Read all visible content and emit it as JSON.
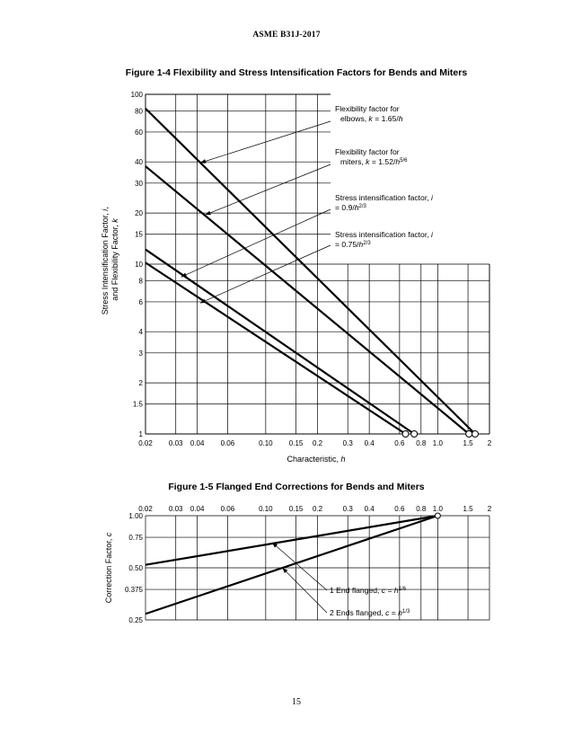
{
  "page": {
    "header": "ASME B31J-2017",
    "page_number": "15"
  },
  "chart_data": [
    {
      "type": "line",
      "title": "Figure 1-4 Flexibility and Stress Intensification Factors for Bends and Miters",
      "xlabel": "Characteristic, h",
      "ylabel": "Stress Intensification Factor, i, and Flexibility Factor, k",
      "xscale": "log",
      "yscale": "log",
      "xlim": [
        0.02,
        2
      ],
      "ylim": [
        1,
        100
      ],
      "grid": true,
      "x_ticks": [
        0.02,
        0.03,
        0.04,
        0.06,
        0.1,
        0.15,
        0.2,
        0.3,
        0.4,
        0.6,
        0.8,
        1.0,
        1.5,
        2
      ],
      "x_tick_labels": [
        "0.02",
        "0.03",
        "0.04",
        "0.06",
        "0.10",
        "0.15",
        "0.2",
        "0.3",
        "0.4",
        "0.6",
        "0.8",
        "1.0",
        "1.5",
        "2"
      ],
      "y_ticks": [
        1,
        1.5,
        2,
        3,
        4,
        6,
        8,
        10,
        15,
        20,
        30,
        40,
        60,
        80,
        100
      ],
      "y_tick_labels": [
        "1",
        "1.5",
        "2",
        "3",
        "4",
        "6",
        "8",
        "10",
        "15",
        "20",
        "30",
        "40",
        "60",
        "80",
        "100"
      ],
      "series": [
        {
          "x": [
            0.02,
            1.65
          ],
          "y": [
            82.5,
            1.0
          ],
          "end_marker": "open-circle"
        },
        {
          "x": [
            0.02,
            1.52
          ],
          "y": [
            37.7,
            1.0
          ],
          "end_marker": "open-circle"
        },
        {
          "x": [
            0.02,
            0.73
          ],
          "y": [
            12.2,
            1.0
          ],
          "end_marker": "open-circle"
        },
        {
          "x": [
            0.02,
            0.65
          ],
          "y": [
            10.2,
            1.0
          ],
          "end_marker": "open-circle"
        }
      ],
      "annotations": [
        {
          "lines": [
            "Flexibility factor for",
            "elbows, k = 1.65/h"
          ],
          "points_to": [
            0.0417,
            39.5
          ]
        },
        {
          "lines": [
            "Flexibility factor for",
            "miters, k = 1.52/h5/6"
          ],
          "points_to": [
            0.0445,
            19.5
          ]
        },
        {
          "lines": [
            "Stress intensification factor, i",
            "= 0.9/h2/3"
          ],
          "points_to": [
            0.0322,
            8.4
          ]
        },
        {
          "lines": [
            "Stress intensification factor, i",
            "= 0.75/h2/3"
          ],
          "points_to": [
            0.0416,
            5.9
          ]
        }
      ]
    },
    {
      "type": "line",
      "title": "Figure 1-5 Flanged End Corrections for Bends and Miters",
      "xlabel": "",
      "ylabel": "Correction Factor, c",
      "xscale": "log",
      "yscale": "log",
      "xlim": [
        0.02,
        2
      ],
      "ylim": [
        0.25,
        1.0
      ],
      "grid": true,
      "x_ticks": [
        0.02,
        0.03,
        0.04,
        0.06,
        0.1,
        0.15,
        0.2,
        0.3,
        0.4,
        0.6,
        0.8,
        1.0,
        1.5,
        2
      ],
      "x_tick_labels": [
        "0.02",
        "0.03",
        "0.04",
        "0.06",
        "0.10",
        "0.15",
        "0.2",
        "0.3",
        "0.4",
        "0.6",
        "0.8",
        "1.0",
        "1.5",
        "2"
      ],
      "y_ticks": [
        1.0,
        0.75,
        0.5,
        0.375,
        0.25
      ],
      "y_tick_labels": [
        "1.00",
        "0.75",
        "0.50",
        "0.375",
        "0.25"
      ],
      "series": [
        {
          "x": [
            0.02,
            1.0
          ],
          "y": [
            0.52,
            1.0
          ],
          "end_marker": "open-circle"
        },
        {
          "x": [
            0.02,
            1.0
          ],
          "y": [
            0.271,
            1.0
          ],
          "end_marker": "open-circle"
        }
      ],
      "annotations": [
        {
          "lines": [
            "1 End flanged, c = h1/6"
          ],
          "points_to": [
            0.109,
            0.7
          ]
        },
        {
          "lines": [
            "2 Ends flanged, c = h1/3"
          ],
          "points_to": [
            0.125,
            0.5
          ]
        }
      ]
    }
  ]
}
